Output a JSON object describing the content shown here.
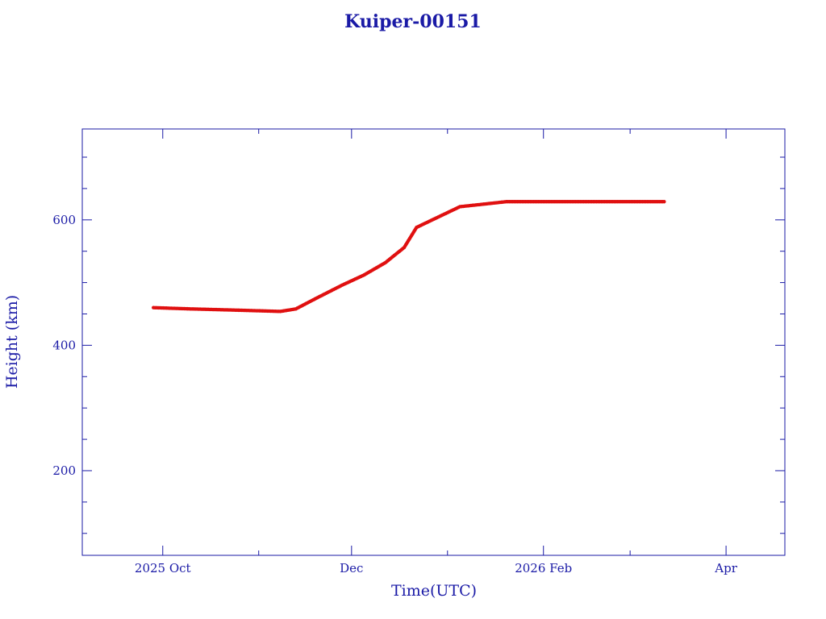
{
  "chart_data": {
    "type": "scatter",
    "title": "Kuiper-00151",
    "xlabel": "Time(UTC)",
    "ylabel": "Height (km)",
    "xlim": [
      "2025-09-05",
      "2026-04-20"
    ],
    "ylim": [
      65,
      745
    ],
    "x_ticks": [
      {
        "date": "2025-10-01",
        "label": "2025 Oct"
      },
      {
        "date": "2025-12-01",
        "label": "Dec"
      },
      {
        "date": "2026-02-01",
        "label": "2026 Feb"
      },
      {
        "date": "2026-04-01",
        "label": "Apr"
      }
    ],
    "y_ticks": [
      200,
      400,
      600
    ],
    "grid": false,
    "axis_color": "#1a1aa6",
    "series": [
      {
        "color": "#e01010",
        "x": [
          "2025-09-28",
          "2025-10-10",
          "2025-10-25",
          "2025-11-08",
          "2025-11-13",
          "2025-11-20",
          "2025-11-28",
          "2025-12-05",
          "2025-12-12",
          "2025-12-18",
          "2025-12-22",
          "2026-01-05",
          "2026-01-20",
          "2026-02-05",
          "2026-02-25",
          "2026-03-05",
          "2026-03-12"
        ],
        "y": [
          460,
          458,
          456,
          454,
          458,
          476,
          496,
          512,
          532,
          556,
          588,
          621,
          629,
          629,
          629,
          629,
          629
        ]
      }
    ]
  }
}
